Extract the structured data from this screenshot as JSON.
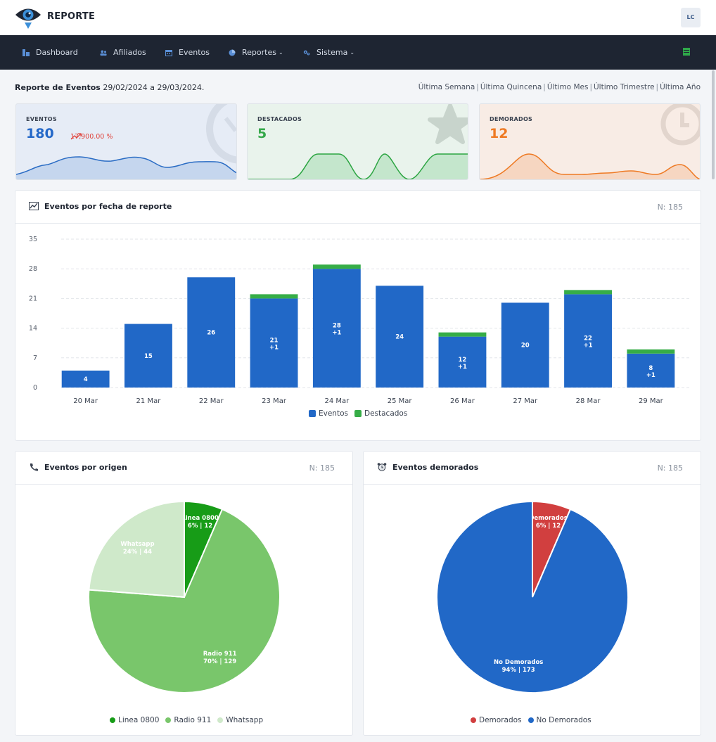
{
  "app": {
    "brand": "REPORTE",
    "user_initials": "LC"
  },
  "nav": [
    {
      "label": "Dashboard",
      "icon": "dashboard-icon",
      "dropdown": false
    },
    {
      "label": "Afiliados",
      "icon": "users-icon",
      "dropdown": false
    },
    {
      "label": "Eventos",
      "icon": "calendar-icon",
      "dropdown": false
    },
    {
      "label": "Reportes",
      "icon": "pie-chart-icon",
      "dropdown": true
    },
    {
      "label": "Sistema",
      "icon": "gears-icon",
      "dropdown": true
    }
  ],
  "report": {
    "title_bold": "Reporte de Eventos",
    "range": "29/02/2024 a 29/03/2024.",
    "quick_ranges": [
      "Última Semana",
      "Última Quincena",
      "Último Mes",
      "Último Trimestre",
      "Última Año"
    ]
  },
  "stats": {
    "eventos": {
      "label": "EVENTOS",
      "value": "180",
      "pct": "17,900.00 %",
      "color": "#2468c8"
    },
    "destacados": {
      "label": "DESTACADOS",
      "value": "5",
      "color": "#35a84a"
    },
    "demorados": {
      "label": "DEMORADOS",
      "value": "12",
      "color": "#ee7a24"
    }
  },
  "cards": {
    "by_date": {
      "title": "Eventos por fecha de reporte",
      "n": "N: 185"
    },
    "by_origin": {
      "title": "Eventos por origen",
      "n": "N: 185"
    },
    "delayed": {
      "title": "Eventos demorados",
      "n": "N: 185"
    }
  },
  "chart_data": [
    {
      "type": "bar",
      "stacked": true,
      "categories": [
        "20 Mar",
        "21 Mar",
        "22 Mar",
        "23 Mar",
        "24 Mar",
        "25 Mar",
        "26 Mar",
        "27 Mar",
        "28 Mar",
        "29 Mar"
      ],
      "series": [
        {
          "name": "Eventos",
          "values": [
            4,
            15,
            26,
            21,
            28,
            24,
            12,
            20,
            22,
            8
          ],
          "color": "#2168c7"
        },
        {
          "name": "Destacados",
          "values": [
            0,
            0,
            0,
            1,
            1,
            0,
            1,
            0,
            1,
            1
          ],
          "color": "#36ad47"
        }
      ],
      "ylim": [
        0,
        35
      ],
      "yticks": [
        0,
        7,
        14,
        21,
        28,
        35
      ],
      "grid": true,
      "legend": "bottom"
    },
    {
      "type": "pie",
      "slices": [
        {
          "label": "Linea 0800",
          "value": 12,
          "pct": "6%",
          "color": "#179c17"
        },
        {
          "label": "Radio 911",
          "value": 129,
          "pct": "70%",
          "color": "#79c66b"
        },
        {
          "label": "Whatsapp",
          "value": 44,
          "pct": "24%",
          "color": "#cfe9ca"
        }
      ],
      "legend": "bottom"
    },
    {
      "type": "pie",
      "slices": [
        {
          "label": "Demorados",
          "value": 12,
          "pct": "6%",
          "color": "#d13f3f"
        },
        {
          "label": "No Demorados",
          "value": 173,
          "pct": "94%",
          "color": "#2168c7"
        }
      ],
      "legend": "bottom"
    }
  ]
}
